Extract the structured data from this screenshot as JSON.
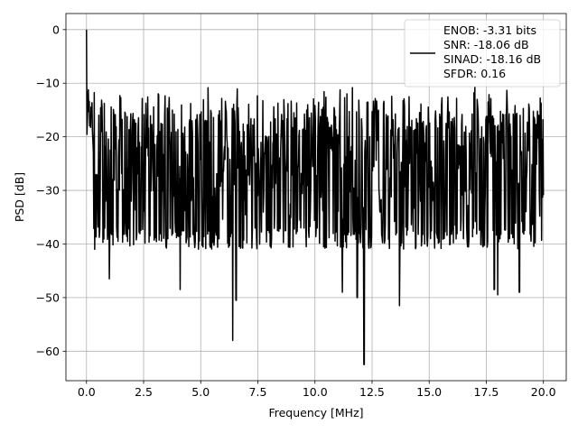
{
  "chart_data": {
    "type": "line",
    "xlabel": "Frequency [MHz]",
    "ylabel": "PSD [dB]",
    "xlim": [
      -0.9,
      21.0
    ],
    "ylim": [
      -65.5,
      3.0
    ],
    "xticks": [
      0.0,
      2.5,
      5.0,
      7.5,
      10.0,
      12.5,
      15.0,
      17.5,
      20.0
    ],
    "xtick_labels": [
      "0.0",
      "2.5",
      "5.0",
      "7.5",
      "10.0",
      "12.5",
      "15.0",
      "17.5",
      "20.0"
    ],
    "yticks": [
      0,
      -10,
      -20,
      -30,
      -40,
      -50,
      -60
    ],
    "ytick_labels": [
      "0",
      "−10",
      "−20",
      "−30",
      "−40",
      "−50",
      "−60"
    ],
    "grid": true,
    "legend_position": "top-right",
    "series": [
      {
        "color": "#000000",
        "x_start": 0.0,
        "x_end": 20.0,
        "points_estimated": 1001,
        "noise_floor_db": -23,
        "envelope_top_db": -10,
        "peak": {
          "x": 0.0,
          "y": 0
        },
        "notable_dips": [
          {
            "x": 1.0,
            "y": -46.5
          },
          {
            "x": 4.1,
            "y": -48.5
          },
          {
            "x": 6.4,
            "y": -58.0
          },
          {
            "x": 6.55,
            "y": -50.5
          },
          {
            "x": 11.2,
            "y": -49.0
          },
          {
            "x": 11.85,
            "y": -50.0
          },
          {
            "x": 12.15,
            "y": -62.5
          },
          {
            "x": 13.7,
            "y": -51.5
          },
          {
            "x": 17.85,
            "y": -48.5
          },
          {
            "x": 18.0,
            "y": -49.5
          },
          {
            "x": 18.95,
            "y": -49.0
          }
        ]
      }
    ],
    "legend": {
      "entries": [
        "ENOB: -3.31 bits",
        "SNR: -18.06 dB",
        "SINAD: -18.16 dB",
        "SFDR: 0.16"
      ]
    }
  }
}
